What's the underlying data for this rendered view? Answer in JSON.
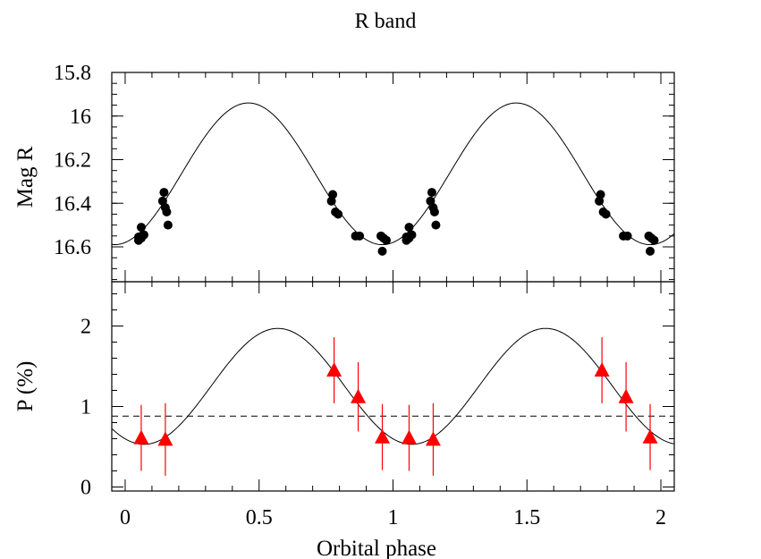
{
  "chart_data": [
    {
      "type": "scatter",
      "title": "R band",
      "ylabel": "Mag R",
      "xlim": [
        -0.05,
        2.05
      ],
      "ylim": [
        16.76,
        15.8
      ],
      "y_inverted": true,
      "yticks": [
        "15.8",
        "16",
        "16.2",
        "16.4",
        "16.6"
      ],
      "model": {
        "kind": "sinusoid",
        "mean": 16.265,
        "amplitude": 0.325,
        "peak_phase": 0.46,
        "period": 1.0
      },
      "points": [
        {
          "x": 0.05,
          "y": 16.57
        },
        {
          "x": 0.05,
          "y": 16.555
        },
        {
          "x": 0.06,
          "y": 16.56
        },
        {
          "x": 0.06,
          "y": 16.51
        },
        {
          "x": 0.07,
          "y": 16.545
        },
        {
          "x": 0.14,
          "y": 16.39
        },
        {
          "x": 0.145,
          "y": 16.35
        },
        {
          "x": 0.15,
          "y": 16.42
        },
        {
          "x": 0.155,
          "y": 16.44
        },
        {
          "x": 0.16,
          "y": 16.5
        },
        {
          "x": 0.77,
          "y": 16.39
        },
        {
          "x": 0.775,
          "y": 16.36
        },
        {
          "x": 0.785,
          "y": 16.44
        },
        {
          "x": 0.795,
          "y": 16.45
        },
        {
          "x": 0.86,
          "y": 16.55
        },
        {
          "x": 0.875,
          "y": 16.55
        },
        {
          "x": 0.955,
          "y": 16.55
        },
        {
          "x": 0.96,
          "y": 16.62
        },
        {
          "x": 0.965,
          "y": 16.56
        },
        {
          "x": 0.975,
          "y": 16.57
        },
        {
          "x": 1.05,
          "y": 16.57
        },
        {
          "x": 1.05,
          "y": 16.555
        },
        {
          "x": 1.06,
          "y": 16.56
        },
        {
          "x": 1.06,
          "y": 16.51
        },
        {
          "x": 1.07,
          "y": 16.545
        },
        {
          "x": 1.14,
          "y": 16.39
        },
        {
          "x": 1.145,
          "y": 16.35
        },
        {
          "x": 1.15,
          "y": 16.42
        },
        {
          "x": 1.155,
          "y": 16.44
        },
        {
          "x": 1.16,
          "y": 16.5
        },
        {
          "x": 1.77,
          "y": 16.39
        },
        {
          "x": 1.775,
          "y": 16.36
        },
        {
          "x": 1.785,
          "y": 16.44
        },
        {
          "x": 1.795,
          "y": 16.45
        },
        {
          "x": 1.86,
          "y": 16.55
        },
        {
          "x": 1.875,
          "y": 16.55
        },
        {
          "x": 1.955,
          "y": 16.55
        },
        {
          "x": 1.96,
          "y": 16.62
        },
        {
          "x": 1.965,
          "y": 16.56
        },
        {
          "x": 1.975,
          "y": 16.57
        }
      ]
    },
    {
      "type": "scatter",
      "ylabel": "P (%)",
      "xlabel": "Orbital phase",
      "xlim": [
        -0.05,
        2.05
      ],
      "ylim": [
        -0.05,
        2.55
      ],
      "yticks": [
        "0",
        "1",
        "2"
      ],
      "xticks": [
        "0",
        "0.5",
        "1",
        "1.5",
        "2"
      ],
      "model": {
        "kind": "sinusoid",
        "mean": 1.25,
        "amplitude": 0.72,
        "peak_phase": 0.57,
        "period": 1.0
      },
      "mean_level": 0.88,
      "point_color": "#ff0000",
      "points": [
        {
          "x": 0.06,
          "y": 0.61,
          "err": 0.41
        },
        {
          "x": 0.15,
          "y": 0.59,
          "err": 0.45
        },
        {
          "x": 0.78,
          "y": 1.45,
          "err": 0.41
        },
        {
          "x": 0.87,
          "y": 1.12,
          "err": 0.43
        },
        {
          "x": 0.96,
          "y": 0.62,
          "err": 0.41
        },
        {
          "x": 1.06,
          "y": 0.61,
          "err": 0.41
        },
        {
          "x": 1.15,
          "y": 0.59,
          "err": 0.45
        },
        {
          "x": 1.78,
          "y": 1.45,
          "err": 0.41
        },
        {
          "x": 1.87,
          "y": 1.12,
          "err": 0.43
        },
        {
          "x": 1.96,
          "y": 0.62,
          "err": 0.41
        }
      ]
    }
  ]
}
